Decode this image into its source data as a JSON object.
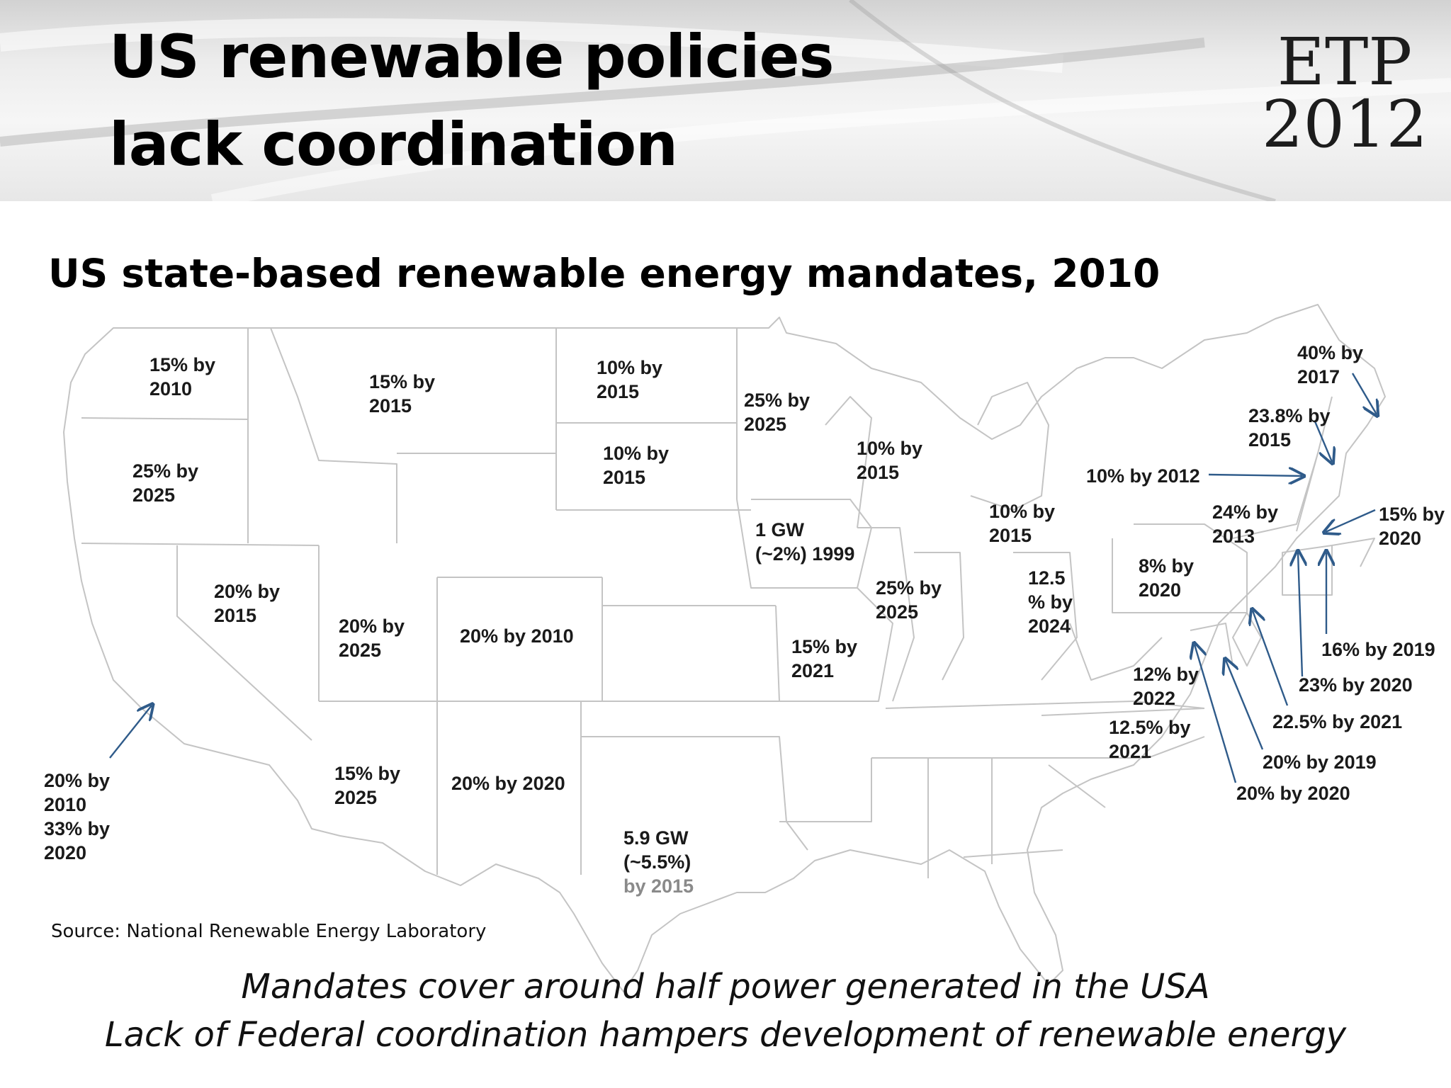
{
  "slide": {
    "title": "US renewable policies lack coordination",
    "logo_line1": "ETP",
    "logo_line2": "2012"
  },
  "subtitle": "US state-based renewable energy mandates, 2010",
  "map_labels": [
    {
      "name": "label-washington",
      "text": "15% by\n2010"
    },
    {
      "name": "label-montana",
      "text": "15% by\n2015"
    },
    {
      "name": "label-north-dakota",
      "text": "10% by\n2015"
    },
    {
      "name": "label-minnesota",
      "text": "25% by\n2025"
    },
    {
      "name": "label-south-dakota",
      "text": "10% by\n2015"
    },
    {
      "name": "label-oregon",
      "text": "25% by\n2025"
    },
    {
      "name": "label-wisconsin",
      "text": "10% by\n2015"
    },
    {
      "name": "label-michigan",
      "text": "10% by\n2015"
    },
    {
      "name": "label-iowa",
      "text": "1 GW\n(~2%) 1999"
    },
    {
      "name": "label-nevada",
      "text": "20% by\n2015"
    },
    {
      "name": "label-utah",
      "text": "20% by\n2025"
    },
    {
      "name": "label-colorado",
      "text": "20% by 2010"
    },
    {
      "name": "label-illinois",
      "text": "25% by\n2025"
    },
    {
      "name": "label-ohio",
      "text": "12.5\n% by\n2024"
    },
    {
      "name": "label-pennsylvania",
      "text": "8% by\n2020"
    },
    {
      "name": "label-missouri",
      "text": "15% by\n2021"
    },
    {
      "name": "label-maryland",
      "text": "12% by\n2022"
    },
    {
      "name": "label-north-carolina",
      "text": "12.5% by\n2021"
    },
    {
      "name": "label-arizona",
      "text": "15% by\n2025"
    },
    {
      "name": "label-new-mexico",
      "text": "20% by 2020"
    },
    {
      "name": "label-california",
      "text": "20% by\n2010\n33% by\n2020"
    },
    {
      "name": "label-maine",
      "text": "40% by\n2017"
    },
    {
      "name": "label-new-hampshire",
      "text": "23.8% by\n2015"
    },
    {
      "name": "label-vermont",
      "text": "10% by 2012"
    },
    {
      "name": "label-new-york",
      "text": "24% by\n2013"
    },
    {
      "name": "label-massachusetts",
      "text": "15% by\n2020"
    },
    {
      "name": "label-rhode-island",
      "text": "16% by 2019"
    },
    {
      "name": "label-connecticut",
      "text": "23% by 2020"
    },
    {
      "name": "label-new-jersey",
      "text": "22.5% by 2021"
    },
    {
      "name": "label-delaware",
      "text": "20% by 2019"
    },
    {
      "name": "label-dc",
      "text": "20% by 2020"
    }
  ],
  "texas": {
    "line1": "5.9 GW",
    "line2": "(~5.5%)",
    "line3": "by 2015"
  },
  "source": "Source: National Renewable  Energy Laboratory",
  "footer": {
    "line1": "Mandates cover around half power generated in the USA",
    "line2": "Lack of Federal coordination hampers development of renewable energy"
  },
  "colors": {
    "arrow": "#2f5b8a",
    "state_border": "#c4c4c4",
    "title": "#000000"
  }
}
